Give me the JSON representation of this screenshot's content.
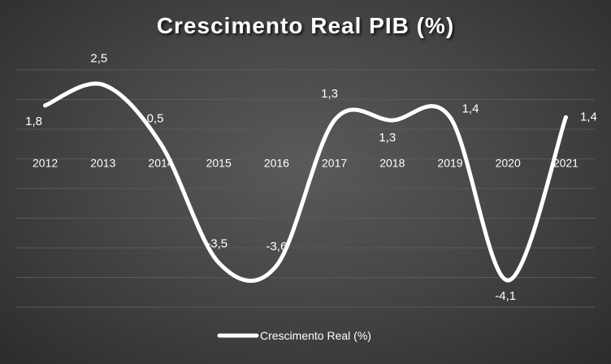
{
  "colors": {
    "line": "#ffffff",
    "grid": "#595959",
    "text": "#ffffff"
  },
  "chart_data": {
    "type": "line",
    "title": "Crescimento Real PIB (%)",
    "xlabel": "",
    "ylabel": "",
    "categories": [
      "2012",
      "2013",
      "2014",
      "2015",
      "2016",
      "2017",
      "2018",
      "2019",
      "2020",
      "2021"
    ],
    "series": [
      {
        "name": "Crescimento Real (%)",
        "values": [
          1.8,
          2.5,
          0.5,
          -3.5,
          -3.6,
          1.3,
          1.3,
          1.4,
          -4.1,
          1.4
        ],
        "labels": [
          "1,8",
          "2,5",
          "0,5",
          "-3,5",
          "-3,6",
          "1,3",
          "1,3",
          "1,4",
          "-4,1",
          "1,4"
        ]
      }
    ],
    "ylim": [
      -5,
      3
    ],
    "smooth": true,
    "grid": true,
    "legend": "bottom"
  }
}
